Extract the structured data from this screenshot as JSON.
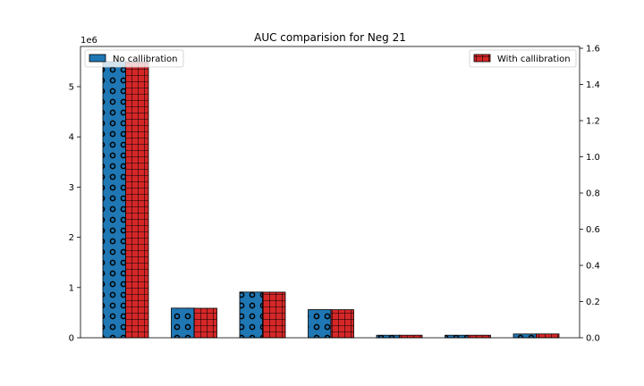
{
  "chart_data": {
    "type": "bar",
    "title": "AUC comparision for Neg 21",
    "xlabel": "",
    "ylabel": "",
    "categories": [
      "",
      "",
      "",
      "",
      "",
      "",
      ""
    ],
    "series": [
      {
        "name": "No callibration",
        "axis": "left",
        "color": "#1f77b4",
        "hatch": "circles",
        "values": [
          5500000,
          590000,
          910000,
          560000,
          50000,
          50000,
          75000
        ]
      },
      {
        "name": "With callibration",
        "axis": "right",
        "color": "#d62728",
        "hatch": "grid",
        "values": [
          1.525,
          0.163,
          0.252,
          0.155,
          0.014,
          0.014,
          0.021
        ]
      }
    ],
    "left_axis": {
      "ylim": [
        0,
        5.8
      ],
      "scale_label": "1e6",
      "ticks": [
        0,
        1,
        2,
        3,
        4,
        5
      ],
      "tick_labels": [
        "0",
        "1",
        "2",
        "3",
        "4",
        "5"
      ]
    },
    "right_axis": {
      "ylim": [
        0,
        1.61
      ],
      "ticks": [
        0.0,
        0.2,
        0.4,
        0.6,
        0.8,
        1.0,
        1.2,
        1.4,
        1.6
      ],
      "tick_labels": [
        "0.0",
        "0.2",
        "0.4",
        "0.6",
        "0.8",
        "1.0",
        "1.2",
        "1.4",
        "1.6"
      ]
    },
    "legend": [
      {
        "label": "No callibration",
        "placement": "top-left"
      },
      {
        "label": "With callibration",
        "placement": "top-right"
      }
    ],
    "grid": false
  }
}
